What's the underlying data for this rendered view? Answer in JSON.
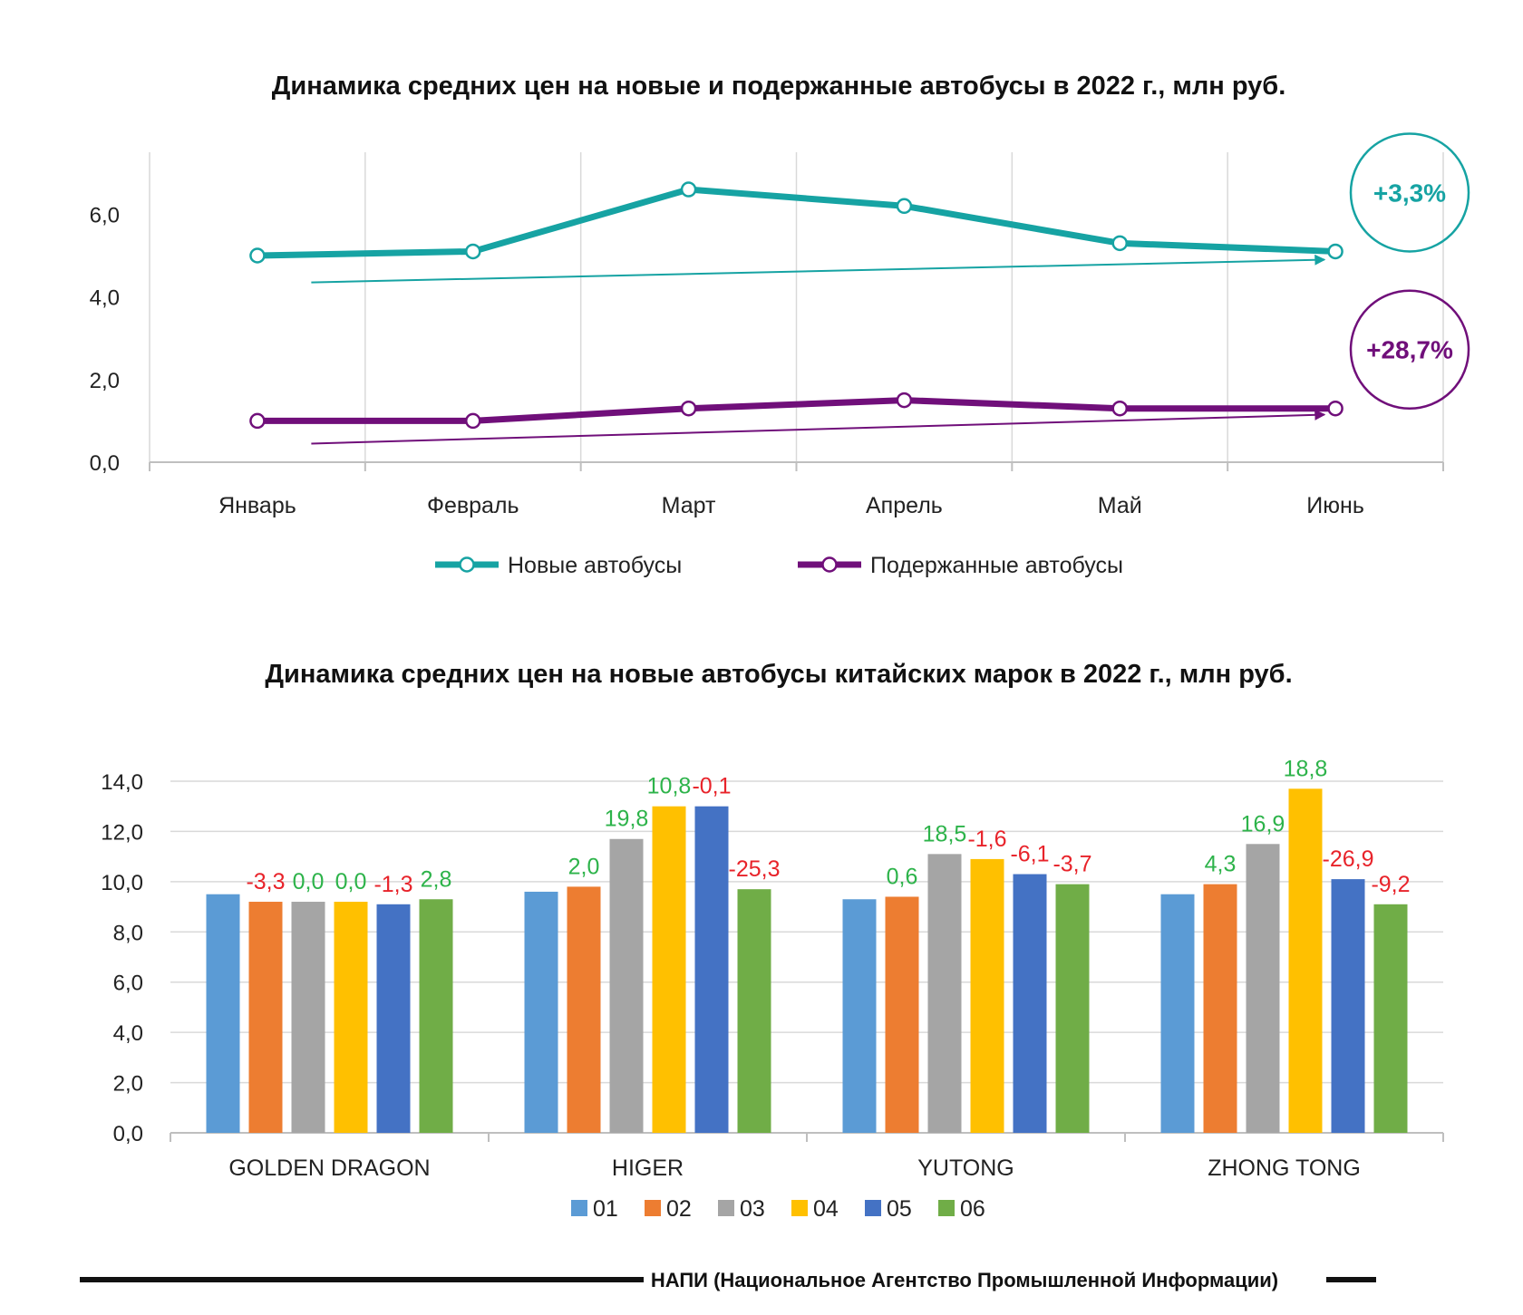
{
  "colors": {
    "new_line": "#16A3A3",
    "used_line": "#700F7A",
    "positive_label": "#2DB34A",
    "negative_label": "#E8232A",
    "series": [
      "#5B9BD5",
      "#ED7D31",
      "#A5A5A5",
      "#FFC000",
      "#4472C4",
      "#70AD47"
    ]
  },
  "chart_data": [
    {
      "type": "line",
      "title": "Динамика средних цен на новые и подержанные автобусы в 2022 г., млн руб.",
      "categories": [
        "Январь",
        "Февраль",
        "Март",
        "Апрель",
        "Май",
        "Июнь"
      ],
      "ylim": [
        0,
        7.5
      ],
      "yticks": [
        "0,0",
        "2,0",
        "4,0",
        "6,0"
      ],
      "ytick_values": [
        0,
        2,
        4,
        6
      ],
      "grid": "vertical",
      "legend_position": "bottom",
      "series": [
        {
          "name": "Новые автобусы",
          "values": [
            5.0,
            5.1,
            6.6,
            6.2,
            5.3,
            5.1
          ],
          "color_key": "new_line"
        },
        {
          "name": "Подержанные автобусы",
          "values": [
            1.0,
            1.0,
            1.3,
            1.5,
            1.3,
            1.3
          ],
          "color_key": "used_line"
        }
      ],
      "trend_arrows": [
        {
          "series": "Новые автобусы",
          "from": 4.35,
          "to": 4.9
        },
        {
          "series": "Подержанные автобусы",
          "from": 0.45,
          "to": 1.15
        }
      ],
      "annotations": [
        {
          "text": "+3,3%",
          "series": "Новые автобусы"
        },
        {
          "text": "+28,7%",
          "series": "Подержанные автобусы"
        }
      ]
    },
    {
      "type": "bar",
      "title": "Динамика средних цен на новые автобусы китайских марок в 2022 г., млн руб.",
      "categories": [
        "GOLDEN DRAGON",
        "HIGER",
        "YUTONG",
        "ZHONG TONG"
      ],
      "ylim": [
        0,
        14
      ],
      "yticks": [
        "0,0",
        "2,0",
        "4,0",
        "6,0",
        "8,0",
        "10,0",
        "12,0",
        "14,0"
      ],
      "ytick_values": [
        0,
        2,
        4,
        6,
        8,
        10,
        12,
        14
      ],
      "grid": "horizontal",
      "legend_position": "bottom",
      "series": [
        {
          "name": "01",
          "values": [
            9.5,
            9.6,
            9.3,
            9.5
          ]
        },
        {
          "name": "02",
          "values": [
            9.2,
            9.8,
            9.4,
            9.9
          ]
        },
        {
          "name": "03",
          "values": [
            9.2,
            11.7,
            11.1,
            11.5
          ]
        },
        {
          "name": "04",
          "values": [
            9.2,
            13.0,
            10.9,
            13.7
          ]
        },
        {
          "name": "05",
          "values": [
            9.1,
            13.0,
            10.3,
            10.1
          ]
        },
        {
          "name": "06",
          "values": [
            9.3,
            9.7,
            9.9,
            9.1
          ]
        }
      ],
      "data_labels": [
        [
          "",
          "-3,3",
          "0,0",
          "0,0",
          "-1,3",
          "2,8"
        ],
        [
          "",
          "2,0",
          "19,8",
          "10,8",
          "-0,1",
          "-25,3"
        ],
        [
          "",
          "0,6",
          "18,5",
          "-1,6",
          "-6,1",
          "-3,7"
        ],
        [
          "",
          "4,3",
          "16,9",
          "18,8",
          "-26,9",
          "-9,2"
        ]
      ]
    }
  ],
  "footer": {
    "source": "НАПИ (Национальное Агентство Промышленной Информации)"
  }
}
